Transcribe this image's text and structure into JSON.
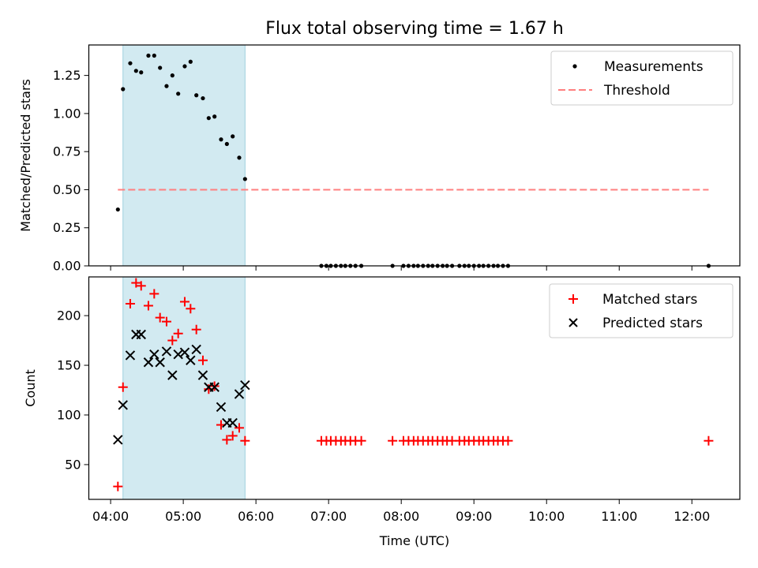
{
  "chart_data": [
    {
      "type": "scatter",
      "title": "Flux total observing time = 1.67 h",
      "xlabel": "",
      "ylabel": "Matched/Predicted stars",
      "ylim": [
        0,
        1.45
      ],
      "xlim": [
        3.7,
        12.66
      ],
      "y_ticks": [
        0.0,
        0.25,
        0.5,
        0.75,
        1.0,
        1.25
      ],
      "y_tick_labels": [
        "0.00",
        "0.25",
        "0.50",
        "0.75",
        "1.00",
        "1.25"
      ],
      "legend": {
        "position": "top-right",
        "measurements_label": "Measurements",
        "threshold_label": "Threshold"
      },
      "highlight_span": {
        "x_start": 4.17,
        "x_end": 5.85,
        "color": "#add8e6"
      },
      "threshold": {
        "y": 0.5,
        "x_start": 4.1,
        "x_end": 12.23,
        "color": "#ff7f7f"
      },
      "measurements": {
        "x": [
          4.1,
          4.17,
          4.27,
          4.35,
          4.42,
          4.52,
          4.6,
          4.68,
          4.77,
          4.85,
          4.93,
          5.02,
          5.1,
          5.18,
          5.27,
          5.35,
          5.43,
          5.52,
          5.6,
          5.68,
          5.77,
          5.85,
          6.9,
          6.97,
          7.03,
          7.1,
          7.17,
          7.23,
          7.3,
          7.37,
          7.45,
          7.88,
          8.03,
          8.1,
          8.17,
          8.23,
          8.3,
          8.37,
          8.43,
          8.5,
          8.57,
          8.63,
          8.7,
          8.8,
          8.87,
          8.93,
          9.0,
          9.07,
          9.13,
          9.2,
          9.27,
          9.33,
          9.4,
          9.47,
          12.23
        ],
        "y": [
          0.37,
          1.16,
          1.33,
          1.28,
          1.27,
          1.38,
          1.38,
          1.3,
          1.18,
          1.25,
          1.13,
          1.31,
          1.34,
          1.12,
          1.1,
          0.97,
          0.98,
          0.83,
          0.8,
          0.85,
          0.71,
          0.57,
          0,
          0,
          0,
          0,
          0,
          0,
          0,
          0,
          0,
          0,
          0,
          0,
          0,
          0,
          0,
          0,
          0,
          0,
          0,
          0,
          0,
          0,
          0,
          0,
          0,
          0,
          0,
          0,
          0,
          0,
          0,
          0,
          0
        ]
      }
    },
    {
      "type": "scatter",
      "title": "",
      "xlabel": "Time (UTC)",
      "ylabel": "Count",
      "ylim": [
        15,
        239
      ],
      "xlim": [
        3.7,
        12.66
      ],
      "x_ticks": [
        4,
        5,
        6,
        7,
        8,
        9,
        10,
        11,
        12
      ],
      "x_tick_labels": [
        "04:00",
        "05:00",
        "06:00",
        "07:00",
        "08:00",
        "09:00",
        "10:00",
        "11:00",
        "12:00"
      ],
      "y_ticks": [
        50,
        100,
        150,
        200
      ],
      "y_tick_labels": [
        "50",
        "100",
        "150",
        "200"
      ],
      "legend": {
        "position": "top-right",
        "matched_label": "Matched stars",
        "predicted_label": "Predicted stars"
      },
      "highlight_span": {
        "x_start": 4.17,
        "x_end": 5.85,
        "color": "#add8e6"
      },
      "series": [
        {
          "name": "Matched stars",
          "marker": "plus",
          "color": "#ff0000",
          "x": [
            4.1,
            4.17,
            4.27,
            4.35,
            4.42,
            4.52,
            4.6,
            4.68,
            4.77,
            4.85,
            4.93,
            5.02,
            5.1,
            5.18,
            5.27,
            5.35,
            5.43,
            5.52,
            5.6,
            5.68,
            5.77,
            5.85,
            6.9,
            6.97,
            7.03,
            7.1,
            7.17,
            7.23,
            7.3,
            7.37,
            7.45,
            7.88,
            8.03,
            8.1,
            8.17,
            8.23,
            8.3,
            8.37,
            8.43,
            8.5,
            8.57,
            8.63,
            8.7,
            8.8,
            8.87,
            8.93,
            9.0,
            9.07,
            9.13,
            9.2,
            9.27,
            9.33,
            9.4,
            9.47,
            12.23
          ],
          "y": [
            28,
            128,
            212,
            233,
            230,
            210,
            222,
            198,
            194,
            175,
            182,
            214,
            207,
            186,
            155,
            126,
            129,
            90,
            75,
            79,
            87,
            74,
            74,
            74,
            74,
            74,
            74,
            74,
            74,
            74,
            74,
            74,
            74,
            74,
            74,
            74,
            74,
            74,
            74,
            74,
            74,
            74,
            74,
            74,
            74,
            74,
            74,
            74,
            74,
            74,
            74,
            74,
            74,
            74,
            74
          ]
        },
        {
          "name": "Predicted stars",
          "marker": "x",
          "color": "#000000",
          "x": [
            4.1,
            4.17,
            4.27,
            4.35,
            4.42,
            4.52,
            4.6,
            4.68,
            4.77,
            4.85,
            4.93,
            5.02,
            5.1,
            5.18,
            5.27,
            5.35,
            5.43,
            5.52,
            5.6,
            5.68,
            5.77,
            5.85
          ],
          "y": [
            75,
            110,
            160,
            181,
            181,
            153,
            161,
            153,
            164,
            140,
            161,
            163,
            155,
            166,
            140,
            128,
            128,
            108,
            92,
            92,
            121,
            130
          ]
        }
      ]
    }
  ]
}
